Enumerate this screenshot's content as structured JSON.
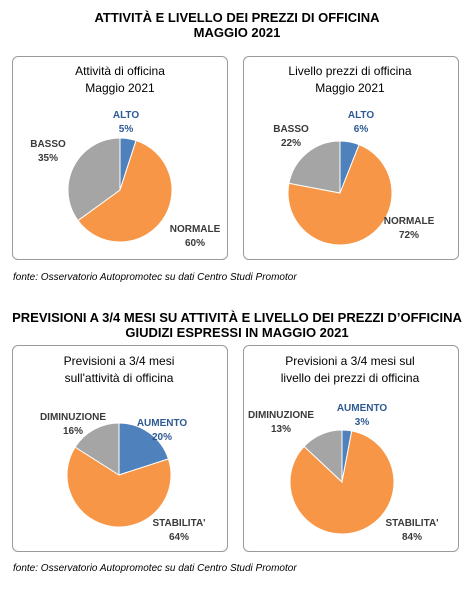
{
  "section1": {
    "title_line1": "ATTIVITÀ E LIVELLO DEI PREZZI DI OFFICINA",
    "title_line2": "MAGGIO 2021",
    "source": "fonte: Osservatorio Autopromotec su dati Centro Studi Promotor"
  },
  "section2": {
    "title_line1": "PREVISIONI A 3/4 MESI SU ATTIVITÀ E LIVELLO DEI PREZZI D’OFFICINA",
    "title_line2": "GIUDIZI ESPRESSI IN MAGGIO 2021",
    "source": "fonte: Osservatorio Autopromotec su dati Centro Studi Promotor"
  },
  "colors": {
    "blue": "#4f81bd",
    "orange": "#f79646",
    "gray": "#a5a5a5"
  },
  "chart_data": [
    {
      "type": "pie",
      "title": [
        "Attività di officina",
        "Maggio 2021"
      ],
      "series": [
        {
          "values": [
            5,
            60,
            35
          ]
        }
      ],
      "categories": [
        "ALTO",
        "NORMALE",
        "BASSO"
      ],
      "labels": [
        "5%",
        "60%",
        "35%"
      ],
      "colors": [
        "#4f81bd",
        "#f79646",
        "#a5a5a5"
      ]
    },
    {
      "type": "pie",
      "title": [
        "Livello prezzi di officina",
        "Maggio 2021"
      ],
      "series": [
        {
          "values": [
            6,
            72,
            22
          ]
        }
      ],
      "categories": [
        "ALTO",
        "NORMALE",
        "BASSO"
      ],
      "labels": [
        "6%",
        "72%",
        "22%"
      ],
      "colors": [
        "#4f81bd",
        "#f79646",
        "#a5a5a5"
      ]
    },
    {
      "type": "pie",
      "title": [
        "Previsioni a 3/4 mesi",
        "sull'attività di officina"
      ],
      "series": [
        {
          "values": [
            20,
            64,
            16
          ]
        }
      ],
      "categories": [
        "AUMENTO",
        "STABILITA'",
        "DIMINUZIONE"
      ],
      "labels": [
        "20%",
        "64%",
        "16%"
      ],
      "colors": [
        "#4f81bd",
        "#f79646",
        "#a5a5a5"
      ]
    },
    {
      "type": "pie",
      "title": [
        "Previsioni a 3/4 mesi sul",
        "livello dei prezzi di officina"
      ],
      "series": [
        {
          "values": [
            3,
            84,
            13
          ]
        }
      ],
      "categories": [
        "AUMENTO",
        "STABILITA'",
        "DIMINUZIONE"
      ],
      "labels": [
        "3%",
        "84%",
        "13%"
      ],
      "colors": [
        "#4f81bd",
        "#f79646",
        "#a5a5a5"
      ]
    }
  ]
}
